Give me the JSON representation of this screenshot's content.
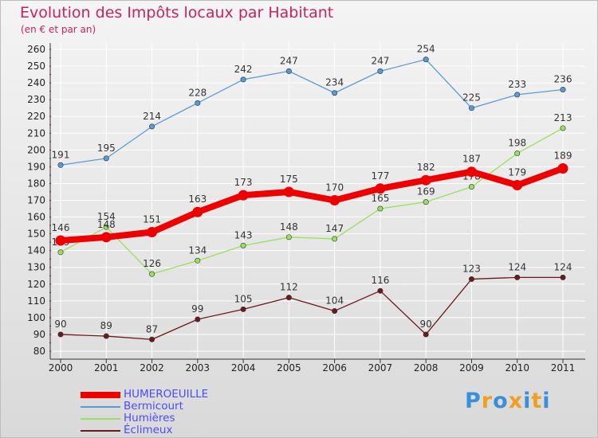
{
  "title": "Evolution des Impôts locaux par Habitant",
  "subtitle": "(en € et par an)",
  "logo": {
    "text": "Proxiti",
    "letters": [
      {
        "char": "P",
        "color": "#3a8fd8"
      },
      {
        "char": "r",
        "color": "#f0a020"
      },
      {
        "char": "o",
        "color": "#3a8fd8"
      },
      {
        "char": "x",
        "color": "#f0a020"
      },
      {
        "char": "i",
        "color": "#3a8fd8"
      },
      {
        "char": "t",
        "color": "#f0a020"
      },
      {
        "char": "i",
        "color": "#3a8fd8"
      }
    ]
  },
  "chart_data": {
    "type": "line",
    "title": "Evolution des Impôts locaux par Habitant",
    "subtitle": "(en € et par an)",
    "xlabel": "",
    "ylabel": "",
    "categories": [
      "2000",
      "2001",
      "2002",
      "2003",
      "2004",
      "2005",
      "2006",
      "2007",
      "2008",
      "2009",
      "2010",
      "2011"
    ],
    "ylim": [
      80,
      260
    ],
    "yticks": [
      80,
      90,
      100,
      110,
      120,
      130,
      140,
      150,
      160,
      170,
      180,
      190,
      200,
      210,
      220,
      230,
      240,
      250,
      260
    ],
    "grid": true,
    "legend_position": "bottom-left",
    "series": [
      {
        "name": "Éclimeux",
        "color": "#6b1a1a",
        "values": [
          90,
          89,
          87,
          99,
          105,
          112,
          104,
          116,
          90,
          123,
          124,
          124
        ]
      },
      {
        "name": "Humières",
        "color": "#98e060",
        "values": [
          139,
          154,
          126,
          134,
          143,
          148,
          147,
          165,
          169,
          178,
          198,
          213
        ]
      },
      {
        "name": "Bermicourt",
        "color": "#5b9bd5",
        "values": [
          191,
          195,
          214,
          228,
          242,
          247,
          234,
          247,
          254,
          225,
          233,
          236
        ]
      },
      {
        "name": "HUMEROEUILLE",
        "color": "#ee0000",
        "values": [
          146,
          148,
          151,
          163,
          173,
          175,
          170,
          177,
          182,
          187,
          179,
          189
        ]
      }
    ],
    "legend_order": [
      "HUMEROEUILLE",
      "Bermicourt",
      "Humières",
      "Éclimeux"
    ]
  }
}
